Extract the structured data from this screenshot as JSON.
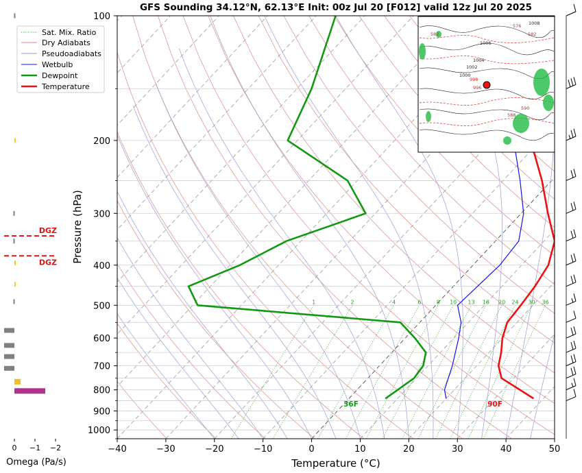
{
  "title": "GFS Sounding 34.12°N, 62.13°E Init: 00z Jul 20 [F012] valid 12z Jul 20 2025",
  "colors": {
    "temperature": "#ee1111",
    "dewpoint": "#119911",
    "wetbulb": "#1111ee",
    "dry_adiabat": "#d98a8a",
    "pseudoadiabat": "#9a9ad6",
    "mixing_ratio": "#2e9b2e",
    "isotherm": "#9a9a9a",
    "dgz": "#e01010"
  },
  "chart_data": {
    "type": "line",
    "subtype": "skew-T log-P sounding",
    "xlabel": "Temperature (°C)",
    "ylabel": "Pressure (hPa)",
    "xlim": [
      -40,
      50
    ],
    "ylim": [
      1050,
      100
    ],
    "y_scale": "log",
    "x_ticks": [
      -40,
      -30,
      -20,
      -10,
      0,
      10,
      20,
      30,
      40,
      50
    ],
    "x_tick_labels": [
      "−40",
      "−30",
      "−20",
      "−10",
      "0",
      "10",
      "20",
      "30",
      "40",
      "50"
    ],
    "y_ticks": [
      1000,
      900,
      800,
      700,
      600,
      500,
      400,
      300,
      200,
      100
    ],
    "y_tick_labels": [
      "1000",
      "900",
      "800",
      "700",
      "600",
      "500",
      "400",
      "300",
      "200",
      "100"
    ],
    "grid": true,
    "legend_position": "top-left",
    "legend": [
      "Sat. Mix. Ratio",
      "Dry Adiabats",
      "Pseudoadiabats",
      "Wetbulb",
      "Dewpoint",
      "Temperature"
    ],
    "mixing_ratio_labels": [
      "1",
      "2",
      "4",
      "6",
      "8",
      "10",
      "13",
      "16",
      "20",
      "24",
      "30",
      "36"
    ],
    "surface_labels": {
      "temperature": "90F",
      "dewpoint": "36F"
    },
    "series": [
      {
        "name": "Temperature",
        "points": [
          {
            "p": 840,
            "t": 38.0
          },
          {
            "p": 800,
            "t": 33.5
          },
          {
            "p": 750,
            "t": 27.5
          },
          {
            "p": 700,
            "t": 24.5
          },
          {
            "p": 650,
            "t": 22.5
          },
          {
            "p": 600,
            "t": 20.0
          },
          {
            "p": 550,
            "t": 18.0
          },
          {
            "p": 500,
            "t": 17.5
          },
          {
            "p": 450,
            "t": 16.8
          },
          {
            "p": 400,
            "t": 15.5
          },
          {
            "p": 350,
            "t": 12.2
          },
          {
            "p": 300,
            "t": 5.5
          },
          {
            "p": 250,
            "t": -2.0
          },
          {
            "p": 200,
            "t": -12.0
          },
          {
            "p": 150,
            "t": -23.0
          },
          {
            "p": 100,
            "t": -40.0
          }
        ]
      },
      {
        "name": "Dewpoint",
        "points": [
          {
            "p": 840,
            "t": 7.5
          },
          {
            "p": 750,
            "t": 9.5
          },
          {
            "p": 700,
            "t": 9.0
          },
          {
            "p": 650,
            "t": 7.0
          },
          {
            "p": 600,
            "t": 2.0
          },
          {
            "p": 550,
            "t": -4.0
          },
          {
            "p": 500,
            "t": -49.0
          },
          {
            "p": 450,
            "t": -54.5
          },
          {
            "p": 400,
            "t": -48.0
          },
          {
            "p": 350,
            "t": -43.0
          },
          {
            "p": 300,
            "t": -32.0
          },
          {
            "p": 250,
            "t": -42.0
          },
          {
            "p": 200,
            "t": -62.0
          },
          {
            "p": 150,
            "t": -67.0
          },
          {
            "p": 100,
            "t": -76.0
          }
        ]
      },
      {
        "name": "Wetbulb",
        "points": [
          {
            "p": 840,
            "t": 20.0
          },
          {
            "p": 800,
            "t": 18.0
          },
          {
            "p": 700,
            "t": 15.0
          },
          {
            "p": 600,
            "t": 11.0
          },
          {
            "p": 550,
            "t": 8.5
          },
          {
            "p": 500,
            "t": 4.5
          },
          {
            "p": 400,
            "t": 5.5
          },
          {
            "p": 350,
            "t": 4.8
          },
          {
            "p": 300,
            "t": 0.5
          },
          {
            "p": 250,
            "t": -6.5
          },
          {
            "p": 200,
            "t": -15.5
          },
          {
            "p": 150,
            "t": -25.0
          },
          {
            "p": 100,
            "t": -40.0
          }
        ]
      }
    ],
    "omega": {
      "xlabel": "Omega (Pa/s)",
      "x_ticks": [
        0,
        -1,
        -2
      ],
      "x_tick_labels": [
        "0",
        "−1",
        "−2"
      ],
      "dgz_label": "DGZ",
      "dgz_bounds_hpa": [
        340,
        380
      ],
      "bars": [
        {
          "p": 805,
          "value": -1.5
        },
        {
          "p": 765,
          "value": -0.3
        },
        {
          "p": 710,
          "value": 0.5
        },
        {
          "p": 665,
          "value": 0.5
        },
        {
          "p": 625,
          "value": 0.5
        },
        {
          "p": 575,
          "value": 0.5
        },
        {
          "p": 490,
          "value": 0.05
        },
        {
          "p": 445,
          "value": -0.05
        },
        {
          "p": 395,
          "value": -0.05
        },
        {
          "p": 350,
          "value": 0.05
        },
        {
          "p": 300,
          "value": 0.05
        },
        {
          "p": 200,
          "value": -0.02
        },
        {
          "p": 100,
          "value": 0.02
        }
      ]
    },
    "wind_barbs": [
      {
        "p": 100,
        "flags": 0,
        "full": 1,
        "half": 0
      },
      {
        "p": 150,
        "flags": 0,
        "full": 3,
        "half": 0
      },
      {
        "p": 200,
        "flags": 0,
        "full": 2,
        "half": 1
      },
      {
        "p": 250,
        "flags": 0,
        "full": 2,
        "half": 0
      },
      {
        "p": 300,
        "flags": 0,
        "full": 2,
        "half": 0
      },
      {
        "p": 350,
        "flags": 0,
        "full": 2,
        "half": 0
      },
      {
        "p": 400,
        "flags": 0,
        "full": 2,
        "half": 0
      },
      {
        "p": 450,
        "flags": 0,
        "full": 2,
        "half": 0
      },
      {
        "p": 500,
        "flags": 0,
        "full": 1,
        "half": 1
      },
      {
        "p": 550,
        "flags": 0,
        "full": 1,
        "half": 0
      },
      {
        "p": 600,
        "flags": 0,
        "full": 2,
        "half": 0
      },
      {
        "p": 650,
        "flags": 0,
        "full": 2,
        "half": 0
      },
      {
        "p": 700,
        "flags": 0,
        "full": 2,
        "half": 0
      },
      {
        "p": 750,
        "flags": 0,
        "full": 2,
        "half": 0
      },
      {
        "p": 800,
        "flags": 0,
        "full": 1,
        "half": 1
      },
      {
        "p": 850,
        "flags": 0,
        "full": 1,
        "half": 0
      }
    ],
    "inset_map": {
      "contour_labels": [
        "582",
        "576",
        "582",
        "1008",
        "1006",
        "1004",
        "1002",
        "1000",
        "998",
        "996",
        "588",
        "590"
      ]
    }
  }
}
